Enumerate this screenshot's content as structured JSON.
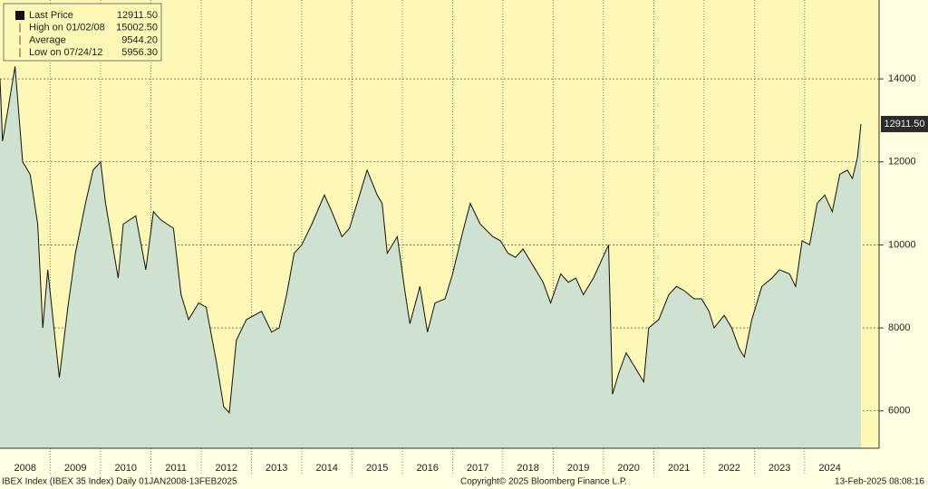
{
  "chart_data": {
    "type": "area",
    "legend": [
      {
        "label": "Last Price",
        "value": "12911.50"
      },
      {
        "label": "High on 01/02/08",
        "value": "15002.50"
      },
      {
        "label": "Average",
        "value": "9544.20"
      },
      {
        "label": "Low on 07/24/12",
        "value": "5956.30"
      }
    ],
    "x": [
      2008.0,
      2008.05,
      2008.15,
      2008.3,
      2008.45,
      2008.6,
      2008.75,
      2008.85,
      2008.95,
      2009.1,
      2009.18,
      2009.35,
      2009.5,
      2009.7,
      2009.85,
      2010.0,
      2010.1,
      2010.35,
      2010.45,
      2010.7,
      2010.9,
      2011.05,
      2011.2,
      2011.45,
      2011.6,
      2011.75,
      2011.95,
      2012.1,
      2012.3,
      2012.45,
      2012.56,
      2012.7,
      2012.9,
      2013.2,
      2013.4,
      2013.55,
      2013.7,
      2013.85,
      2014.0,
      2014.2,
      2014.45,
      2014.6,
      2014.8,
      2014.95,
      2015.2,
      2015.3,
      2015.5,
      2015.6,
      2015.7,
      2015.9,
      2016.05,
      2016.15,
      2016.35,
      2016.5,
      2016.65,
      2016.85,
      2017.0,
      2017.2,
      2017.35,
      2017.55,
      2017.8,
      2017.95,
      2018.1,
      2018.25,
      2018.4,
      2018.6,
      2018.8,
      2018.95,
      2019.15,
      2019.3,
      2019.45,
      2019.6,
      2019.8,
      2019.95,
      2020.1,
      2020.18,
      2020.3,
      2020.45,
      2020.6,
      2020.8,
      2020.9,
      2021.1,
      2021.3,
      2021.45,
      2021.6,
      2021.8,
      2021.95,
      2022.1,
      2022.2,
      2022.4,
      2022.55,
      2022.7,
      2022.8,
      2022.95,
      2023.15,
      2023.35,
      2023.5,
      2023.7,
      2023.82,
      2023.95,
      2024.1,
      2024.25,
      2024.4,
      2024.55,
      2024.7,
      2024.85,
      2024.95,
      2025.05,
      2025.12
    ],
    "series": [
      {
        "color": "#111111",
        "fill": "#cfe2cf",
        "values": [
          14000,
          12500,
          13200,
          14300,
          12000,
          11700,
          10500,
          8000,
          9400,
          7700,
          6800,
          8500,
          9800,
          11000,
          11800,
          12000,
          11000,
          9200,
          10500,
          10700,
          9400,
          10800,
          10600,
          10400,
          8800,
          8200,
          8600,
          8500,
          7200,
          6100,
          5956.3,
          7700,
          8200,
          8400,
          7900,
          8000,
          8800,
          9800,
          10000,
          10500,
          11200,
          10800,
          10200,
          10400,
          11400,
          11800,
          11200,
          11000,
          9800,
          10200,
          8900,
          8100,
          9000,
          7900,
          8600,
          8700,
          9300,
          10300,
          11000,
          10500,
          10200,
          10100,
          9800,
          9700,
          9900,
          9500,
          9100,
          8600,
          9300,
          9100,
          9200,
          8800,
          9200,
          9600,
          10000,
          6400,
          6900,
          7400,
          7100,
          6700,
          8000,
          8200,
          8800,
          9000,
          8900,
          8700,
          8700,
          8400,
          8000,
          8300,
          8000,
          7500,
          7300,
          8200,
          9000,
          9200,
          9400,
          9300,
          9000,
          10100,
          10000,
          11000,
          11200,
          10800,
          11700,
          11800,
          11600,
          12100,
          12911.5
        ]
      }
    ],
    "xlim": [
      2008,
      2025.48
    ],
    "xticks": [
      2008,
      2009,
      2010,
      2011,
      2012,
      2013,
      2014,
      2015,
      2016,
      2017,
      2018,
      2019,
      2020,
      2021,
      2022,
      2023,
      2024
    ],
    "ylim": [
      5100,
      15900
    ],
    "yticks": [
      6000,
      8000,
      10000,
      12000,
      14000
    ],
    "plot_color": "#fdf8b6",
    "grid": true,
    "footer_left": "IBEX Index (IBEX 35 Index)  Daily 01JAN2008-13FEB2025",
    "footer_center": "Copyright© 2025 Bloomberg Finance L.P.",
    "footer_right": "13-Feb-2025 08:08:16"
  }
}
